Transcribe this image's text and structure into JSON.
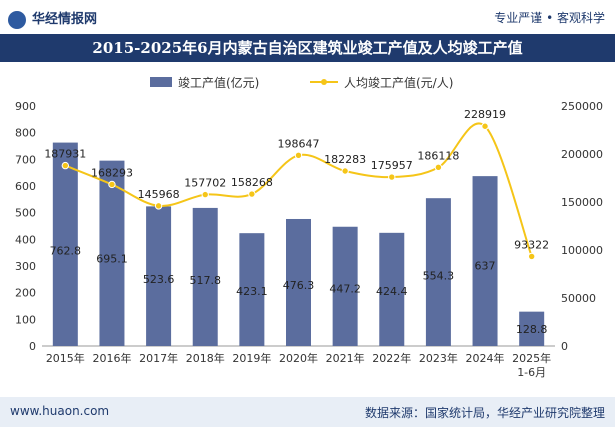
{
  "header": {
    "brand": "华经情报网",
    "tagline": "专业严谨 • 客观科学"
  },
  "chart_data": {
    "type": "bar",
    "title": "2015-2025年6月内蒙古自治区建筑业竣工产值及人均竣工产值",
    "categories": [
      "2015年",
      "2016年",
      "2017年",
      "2018年",
      "2019年",
      "2020年",
      "2021年",
      "2022年",
      "2023年",
      "2024年",
      "2025年\n1-6月"
    ],
    "series": [
      {
        "name": "竣工产值(亿元)",
        "type": "bar",
        "axis": "left",
        "color": "#5b6d9e",
        "values": [
          762.8,
          695.1,
          523.6,
          517.8,
          423.1,
          476.3,
          447.2,
          424.4,
          554.3,
          637,
          128.8
        ]
      },
      {
        "name": "人均竣工产值(元/人)",
        "type": "line",
        "axis": "right",
        "color": "#f5c518",
        "values": [
          187931,
          168293,
          145968,
          157702,
          158268,
          198647,
          182283,
          175957,
          186118,
          228919,
          93322
        ]
      }
    ],
    "y_left": {
      "min": 0,
      "max": 900,
      "ticks": [
        0,
        100,
        200,
        300,
        400,
        500,
        600,
        700,
        800,
        900
      ]
    },
    "y_right": {
      "min": 0,
      "max": 250000,
      "ticks": [
        0,
        50000,
        100000,
        150000,
        200000,
        250000
      ]
    },
    "legend": {
      "placement": "top-center"
    },
    "grid": false
  },
  "footer": {
    "url": "www.huaon.com",
    "source": "数据来源：国家统计局，华经产业研究院整理"
  }
}
